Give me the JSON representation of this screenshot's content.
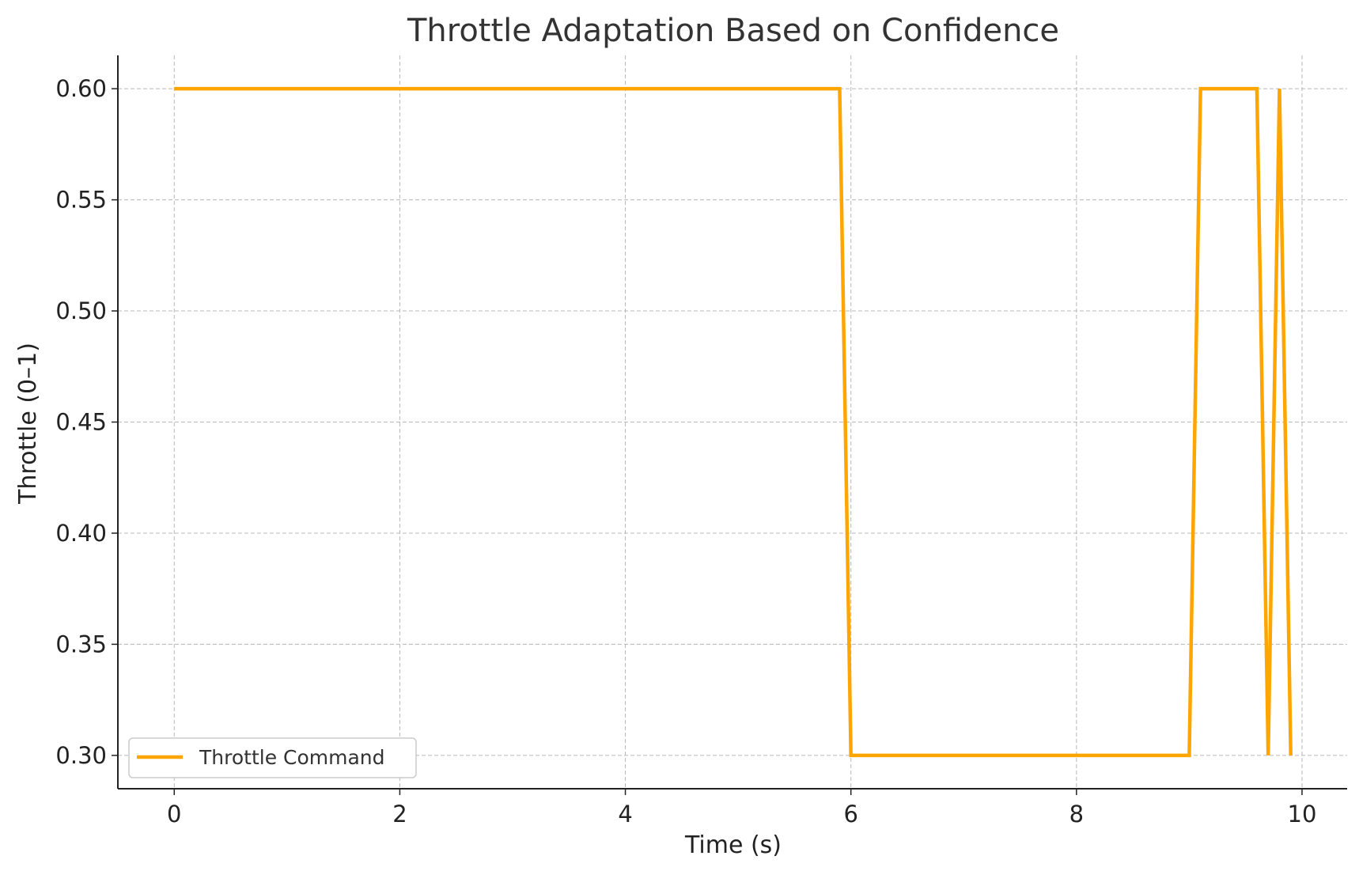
{
  "chart_data": {
    "type": "line",
    "title": "Throttle Adaptation Based on Confidence",
    "xlabel": "Time (s)",
    "ylabel": "Throttle (0–1)",
    "xlim": [
      -0.5,
      10.4
    ],
    "ylim": [
      0.285,
      0.615
    ],
    "x_ticks": [
      0,
      2,
      4,
      6,
      8,
      10
    ],
    "x_tick_labels": [
      "0",
      "2",
      "4",
      "6",
      "8",
      "10"
    ],
    "y_ticks": [
      0.3,
      0.35,
      0.4,
      0.45,
      0.5,
      0.55,
      0.6
    ],
    "y_tick_labels": [
      "0.30",
      "0.35",
      "0.40",
      "0.45",
      "0.50",
      "0.55",
      "0.60"
    ],
    "grid": true,
    "legend_position": "lower-left",
    "series": [
      {
        "name": "Throttle Command",
        "color": "#FFA500",
        "x": [
          0.0,
          0.1,
          0.2,
          0.3,
          0.4,
          0.5,
          0.6,
          0.7,
          0.8,
          0.9,
          1.0,
          1.1,
          1.2,
          1.3,
          1.4,
          1.5,
          1.6,
          1.7,
          1.8,
          1.9,
          2.0,
          2.1,
          2.2,
          2.3,
          2.4,
          2.5,
          2.6,
          2.7,
          2.8,
          2.9,
          3.0,
          3.1,
          3.2,
          3.3,
          3.4,
          3.5,
          3.6,
          3.7,
          3.8,
          3.9,
          4.0,
          4.1,
          4.2,
          4.3,
          4.4,
          4.5,
          4.6,
          4.7,
          4.8,
          4.9,
          5.0,
          5.1,
          5.2,
          5.3,
          5.4,
          5.5,
          5.6,
          5.7,
          5.8,
          5.9,
          6.0,
          6.1,
          6.2,
          6.3,
          6.4,
          6.5,
          6.6,
          6.7,
          6.8,
          6.9,
          7.0,
          7.1,
          7.2,
          7.3,
          7.4,
          7.5,
          7.6,
          7.7,
          7.8,
          7.9,
          8.0,
          8.1,
          8.2,
          8.3,
          8.4,
          8.5,
          8.6,
          8.7,
          8.8,
          8.9,
          9.0,
          9.1,
          9.2,
          9.3,
          9.4,
          9.5,
          9.6,
          9.7,
          9.8,
          9.9
        ],
        "y": [
          0.6,
          0.6,
          0.6,
          0.6,
          0.6,
          0.6,
          0.6,
          0.6,
          0.6,
          0.6,
          0.6,
          0.6,
          0.6,
          0.6,
          0.6,
          0.6,
          0.6,
          0.6,
          0.6,
          0.6,
          0.6,
          0.6,
          0.6,
          0.6,
          0.6,
          0.6,
          0.6,
          0.6,
          0.6,
          0.6,
          0.6,
          0.6,
          0.6,
          0.6,
          0.6,
          0.6,
          0.6,
          0.6,
          0.6,
          0.6,
          0.6,
          0.6,
          0.6,
          0.6,
          0.6,
          0.6,
          0.6,
          0.6,
          0.6,
          0.6,
          0.6,
          0.6,
          0.6,
          0.6,
          0.6,
          0.6,
          0.6,
          0.6,
          0.6,
          0.6,
          0.3,
          0.3,
          0.3,
          0.3,
          0.3,
          0.3,
          0.3,
          0.3,
          0.3,
          0.3,
          0.3,
          0.3,
          0.3,
          0.3,
          0.3,
          0.3,
          0.3,
          0.3,
          0.3,
          0.3,
          0.3,
          0.3,
          0.3,
          0.3,
          0.3,
          0.3,
          0.3,
          0.3,
          0.3,
          0.3,
          0.3,
          0.6,
          0.6,
          0.6,
          0.6,
          0.6,
          0.6,
          0.3,
          0.6,
          0.3
        ]
      }
    ]
  }
}
